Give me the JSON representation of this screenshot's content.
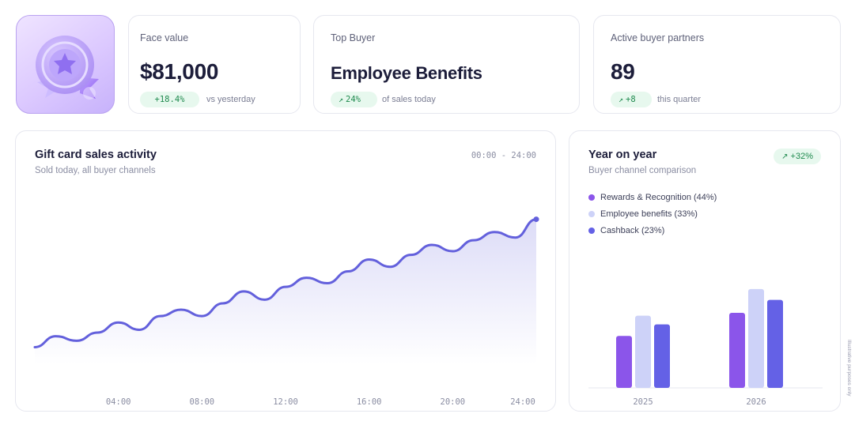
{
  "stats": [
    {
      "label": "Face value",
      "value": "$81,000",
      "delta": "+18.4%",
      "delta_icon": "",
      "note": "vs yesterday"
    },
    {
      "label": "Top Buyer",
      "value": "Employee Benefits",
      "delta": "24%",
      "delta_icon": "trend-up-icon",
      "note": "of sales today"
    },
    {
      "label": "Active buyer partners",
      "value": "89",
      "delta": "+8",
      "delta_icon": "trend-up-icon",
      "note": "this quarter"
    }
  ],
  "activity": {
    "title": "Gift card sales activity",
    "subtitle": "Sold today, all buyer channels",
    "range": "00:00 - 24:00",
    "chart_data": {
      "type": "area",
      "x_ticks": [
        "04:00",
        "08:00",
        "12:00",
        "16:00",
        "20:00",
        "24:00"
      ],
      "x": [
        0,
        1,
        2,
        3,
        4,
        5,
        6,
        7,
        8,
        9,
        10,
        11,
        12,
        13,
        14,
        15,
        16,
        17,
        18,
        19,
        20,
        21,
        22,
        23,
        24
      ],
      "values": [
        10,
        22,
        17,
        26,
        37,
        29,
        44,
        51,
        44,
        58,
        71,
        62,
        76,
        86,
        80,
        93,
        106,
        98,
        111,
        122,
        115,
        127,
        136,
        130,
        150
      ],
      "color": "#6360dc"
    }
  },
  "yoy": {
    "title": "Year on year",
    "subtitle": "Buyer channel comparison",
    "badge": "+32%",
    "badge_icon": "trend-up-icon",
    "chart_data": {
      "type": "bar",
      "categories": [
        "2025",
        "2026"
      ],
      "series": [
        {
          "name": "Rewards & Recognition (44%)",
          "color": "#8b55ea",
          "values": [
            72,
            104
          ]
        },
        {
          "name": "Employee benefits (33%)",
          "color": "#cdd2f8",
          "values": [
            100,
            137
          ]
        },
        {
          "name": "Cashback (23%)",
          "color": "#6461e6",
          "values": [
            88,
            122
          ]
        }
      ],
      "ylim": [
        0,
        150
      ]
    }
  },
  "side_note": "Illustrative purposes only"
}
